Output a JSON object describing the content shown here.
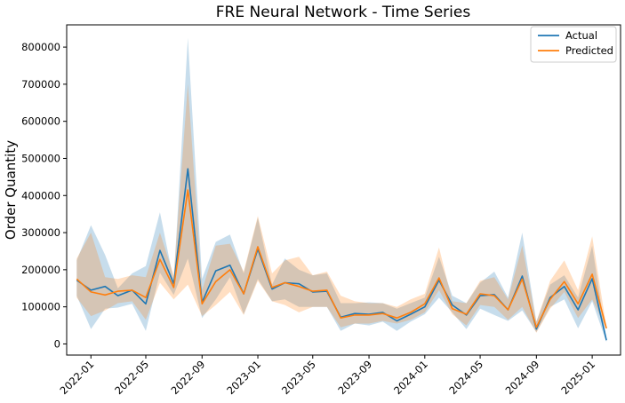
{
  "chart_data": {
    "type": "line",
    "title": "FRE Neural Network - Time Series",
    "xlabel": "",
    "ylabel": "Order Quantity",
    "ylim": [
      -30000,
      860000
    ],
    "xlim": [
      "2021-11-09",
      "2025-03-04"
    ],
    "yticks": [
      0,
      100000,
      200000,
      300000,
      400000,
      500000,
      600000,
      700000,
      800000
    ],
    "xticks": [
      "2022-01",
      "2022-05",
      "2022-09",
      "2023-01",
      "2023-05",
      "2023-09",
      "2024-01",
      "2024-05",
      "2024-09",
      "2025-01"
    ],
    "legend": {
      "position": "top-right"
    },
    "x": [
      "2021-12-01",
      "2022-01-01",
      "2022-02-01",
      "2022-03-01",
      "2022-04-01",
      "2022-05-01",
      "2022-06-01",
      "2022-07-01",
      "2022-08-01",
      "2022-09-01",
      "2022-10-01",
      "2022-11-01",
      "2022-12-01",
      "2023-01-01",
      "2023-02-01",
      "2023-03-01",
      "2023-04-01",
      "2023-05-01",
      "2023-06-01",
      "2023-07-01",
      "2023-08-01",
      "2023-09-01",
      "2023-10-01",
      "2023-11-01",
      "2023-12-01",
      "2024-01-01",
      "2024-02-01",
      "2024-03-01",
      "2024-04-01",
      "2024-05-01",
      "2024-06-01",
      "2024-07-01",
      "2024-08-01",
      "2024-09-01",
      "2024-10-01",
      "2024-11-01",
      "2024-12-01",
      "2025-01-01",
      "2025-02-01"
    ],
    "series": [
      {
        "name": "Actual",
        "color": "#1f77b4",
        "values": [
          172000,
          145000,
          155000,
          130000,
          145000,
          108000,
          252000,
          162000,
          472000,
          112000,
          197000,
          212000,
          135000,
          256000,
          148000,
          165000,
          162000,
          140000,
          142000,
          72000,
          82000,
          80000,
          85000,
          62000,
          80000,
          100000,
          172000,
          105000,
          78000,
          130000,
          133000,
          92000,
          183000,
          40000,
          125000,
          155000,
          92000,
          176000,
          10000
        ],
        "band_low": [
          130000,
          40000,
          95000,
          98000,
          108000,
          35000,
          192000,
          132000,
          230000,
          70000,
          120000,
          180000,
          80000,
          175000,
          115000,
          120000,
          100000,
          100000,
          100000,
          35000,
          55000,
          50000,
          60000,
          35000,
          60000,
          80000,
          125000,
          85000,
          40000,
          95000,
          78000,
          62000,
          90000,
          32000,
          100000,
          120000,
          42000,
          115000,
          5000
        ],
        "band_high": [
          225000,
          320000,
          240000,
          150000,
          190000,
          210000,
          355000,
          170000,
          825000,
          175000,
          275000,
          295000,
          190000,
          340000,
          160000,
          230000,
          200000,
          185000,
          190000,
          110000,
          110000,
          112000,
          110000,
          95000,
          110000,
          125000,
          235000,
          130000,
          110000,
          165000,
          195000,
          125000,
          300000,
          60000,
          160000,
          185000,
          125000,
          265000,
          15000
        ]
      },
      {
        "name": "Predicted",
        "color": "#ff7f0e",
        "values": [
          175000,
          140000,
          132000,
          142000,
          145000,
          125000,
          228000,
          152000,
          415000,
          108000,
          168000,
          200000,
          135000,
          262000,
          152000,
          165000,
          155000,
          142000,
          145000,
          70000,
          78000,
          78000,
          82000,
          70000,
          85000,
          108000,
          178000,
          95000,
          80000,
          135000,
          130000,
          92000,
          175000,
          45000,
          120000,
          168000,
          108000,
          188000,
          42000
        ]
      }
    ],
    "predicted_band_low": [
      125000,
      75000,
      90000,
      110000,
      115000,
      65000,
      165000,
      120000,
      160000,
      75000,
      105000,
      140000,
      78000,
      170000,
      115000,
      105000,
      85000,
      100000,
      100000,
      45000,
      55000,
      55000,
      62000,
      55000,
      65000,
      85000,
      145000,
      80000,
      50000,
      105000,
      100000,
      65000,
      100000,
      30000,
      95000,
      140000,
      70000,
      120000,
      40000
    ],
    "predicted_band_high": [
      230000,
      300000,
      180000,
      175000,
      185000,
      180000,
      300000,
      185000,
      700000,
      145000,
      265000,
      270000,
      195000,
      345000,
      190000,
      225000,
      235000,
      185000,
      195000,
      130000,
      115000,
      110000,
      110000,
      100000,
      120000,
      135000,
      260000,
      115000,
      110000,
      170000,
      180000,
      120000,
      265000,
      60000,
      170000,
      225000,
      145000,
      290000,
      45000
    ]
  }
}
